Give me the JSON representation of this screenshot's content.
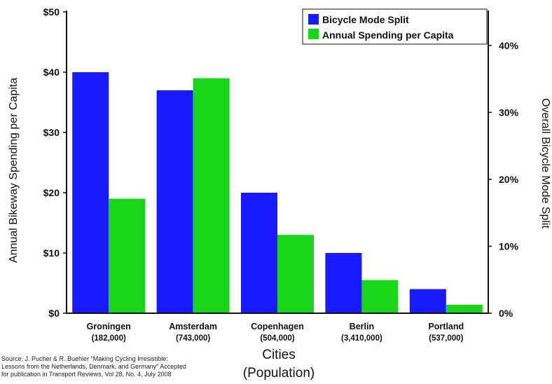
{
  "chart_data": {
    "type": "bar",
    "categories": [
      "Groningen",
      "Amsterdam",
      "Copenhagen",
      "Berlin",
      "Portland"
    ],
    "category_populations": [
      "(182,000)",
      "(743,000)",
      "(504,000)",
      "(3,410,000)",
      "(537,000)"
    ],
    "series": [
      {
        "name": "Bicycle Mode Split",
        "axis": "right",
        "unit": "%",
        "color": "#1a1aff",
        "values": [
          36,
          33.3,
          18,
          9,
          3.6
        ]
      },
      {
        "name": "Annual Spending per Capita",
        "axis": "left",
        "unit": "$",
        "color": "#19d419",
        "values": [
          19,
          39,
          13,
          5.5,
          1.4
        ]
      }
    ],
    "ylabel": "Annual Bikeway Spending per Capita",
    "ylabel_right": "Overall Bicycle Mode Split",
    "xlabel_line1": "Cities",
    "xlabel_line2": "(Population)",
    "ylim": [
      0,
      50
    ],
    "ylim_right": [
      0,
      45
    ],
    "yticks": [
      "$0",
      "$10",
      "$20",
      "$30",
      "$40",
      "$50"
    ],
    "yticks_right": [
      "0%",
      "10%",
      "20%",
      "30%",
      "40%"
    ],
    "legend_position": "top-right",
    "grid": false
  },
  "source_note": [
    "Source: J. Pucher & R. Buehler \"Making Cycling Irresistible:",
    "Lessons from the Netherlands, Denmark, and Germany\" Accepted",
    "for publication in Transport Reviews, Vol 28, No. 4, July 2008"
  ]
}
